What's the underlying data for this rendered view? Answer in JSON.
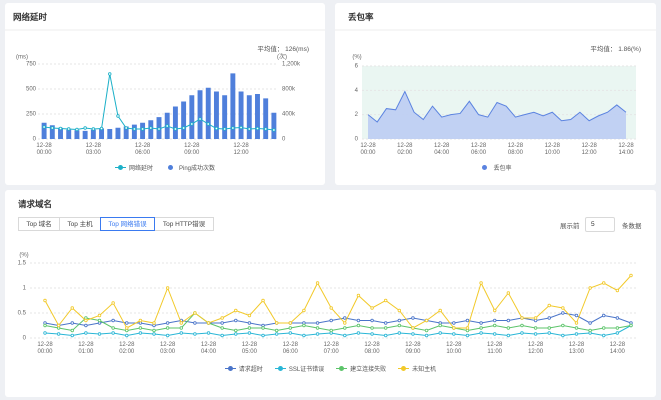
{
  "chart_data": [
    {
      "type": "combo",
      "title": "网络延时",
      "summary": "平均值： 126(ms)",
      "y_label": "(ms)",
      "y2_label": "(次)",
      "categories": [
        "12-28\n00:00",
        null,
        null,
        null,
        null,
        null,
        "12-28\n03:00",
        null,
        null,
        null,
        null,
        null,
        "12-28\n06:00",
        null,
        null,
        null,
        null,
        null,
        "12-28\n09:00",
        null,
        null,
        null,
        null,
        null,
        "12-28\n12:00",
        null,
        null,
        null,
        null
      ],
      "series": [
        {
          "name": "网络延时",
          "type": "line",
          "color": "#1cb0c8",
          "values": [
            120,
            110,
            105,
            100,
            95,
            110,
            100,
            105,
            650,
            230,
            110,
            100,
            100,
            110,
            100,
            130,
            100,
            110,
            150,
            200,
            150,
            105,
            100,
            110,
            115,
            100,
            105,
            100,
            90
          ]
        },
        {
          "name": "Ping成功次数",
          "type": "bar",
          "color": "#4f7fdb",
          "axis": "y2",
          "values": [
            260000,
            220000,
            180000,
            150000,
            140000,
            130000,
            150000,
            170000,
            160000,
            180000,
            200000,
            230000,
            260000,
            300000,
            350000,
            420000,
            520000,
            600000,
            700000,
            780000,
            820000,
            760000,
            700000,
            1050000,
            760000,
            700000,
            720000,
            650000,
            420000
          ]
        }
      ],
      "ylim": [
        0,
        750
      ],
      "yticks": [
        0,
        250,
        500,
        750
      ],
      "y2lim": [
        0,
        1200000
      ],
      "y2ticks": [
        0,
        {
          "value": 400000,
          "label": "400k"
        },
        {
          "value": 800000,
          "label": "800k"
        },
        {
          "value": 1200000,
          "label": "1,200k"
        }
      ],
      "grid": true
    },
    {
      "type": "area",
      "title": "丢包率",
      "summary": "平均值： 1.86(%)",
      "y_label": "(%)",
      "categories": [
        "12-28\n00:00",
        null,
        null,
        null,
        "12-28\n02:00",
        null,
        null,
        null,
        "12-28\n04:00",
        null,
        null,
        null,
        "12-28\n06:00",
        null,
        null,
        null,
        "12-28\n08:00",
        null,
        null,
        null,
        "12-28\n10:00",
        null,
        null,
        null,
        "12-28\n12:00",
        null,
        null,
        null,
        "12-28\n14:00"
      ],
      "series": [
        {
          "name": "丢包率",
          "color": "#5b83e0",
          "values": [
            2.0,
            1.4,
            2.5,
            2.4,
            3.9,
            2.2,
            1.6,
            2.7,
            1.8,
            2.0,
            2.1,
            3.1,
            2.0,
            1.8,
            3.0,
            2.7,
            1.8,
            2.0,
            2.2,
            1.9,
            2.2,
            1.5,
            1.6,
            2.2,
            1.5,
            1.9,
            2.2,
            2.8,
            2.2
          ]
        }
      ],
      "ylim": [
        0,
        6
      ],
      "yticks": [
        0,
        2,
        4,
        6
      ],
      "grid": true
    },
    {
      "type": "line",
      "title": "请求域名",
      "y_label": "(%)",
      "categories": [
        "12-28\n00:00",
        null,
        null,
        "12-28\n01:00",
        null,
        null,
        "12-28\n02:00",
        null,
        null,
        "12-28\n03:00",
        null,
        null,
        "12-28\n04:00",
        null,
        null,
        "12-28\n05:00",
        null,
        null,
        "12-28\n06:00",
        null,
        null,
        "12-28\n07:00",
        null,
        null,
        "12-28\n08:00",
        null,
        null,
        "12-28\n09:00",
        null,
        null,
        "12-28\n10:00",
        null,
        null,
        "12-28\n11:00",
        null,
        null,
        "12-28\n12:00",
        null,
        null,
        "12-28\n13:00",
        null,
        null,
        "12-28\n14:00",
        null
      ],
      "series": [
        {
          "name": "请求超时",
          "color": "#4a74c9",
          "values": [
            0.3,
            0.25,
            0.3,
            0.25,
            0.3,
            0.35,
            0.3,
            0.3,
            0.25,
            0.3,
            0.35,
            0.3,
            0.3,
            0.3,
            0.35,
            0.3,
            0.25,
            0.3,
            0.3,
            0.3,
            0.3,
            0.35,
            0.4,
            0.35,
            0.35,
            0.3,
            0.35,
            0.4,
            0.35,
            0.3,
            0.3,
            0.35,
            0.3,
            0.35,
            0.35,
            0.4,
            0.35,
            0.4,
            0.5,
            0.45,
            0.3,
            0.45,
            0.4,
            0.3
          ]
        },
        {
          "name": "SSL证书错误",
          "color": "#29b6d6",
          "values": [
            0.1,
            0.08,
            0.05,
            0.1,
            0.08,
            0.1,
            0.05,
            0.1,
            0.08,
            0.05,
            0.1,
            0.08,
            0.1,
            0.05,
            0.08,
            0.1,
            0.05,
            0.08,
            0.1,
            0.05,
            0.08,
            0.1,
            0.05,
            0.1,
            0.08,
            0.05,
            0.1,
            0.08,
            0.05,
            0.1,
            0.08,
            0.05,
            0.1,
            0.08,
            0.05,
            0.1,
            0.08,
            0.1,
            0.05,
            0.08,
            0.1,
            0.05,
            0.1,
            0.25
          ]
        },
        {
          "name": "建立连接失败",
          "color": "#5cc46a",
          "values": [
            0.25,
            0.2,
            0.15,
            0.4,
            0.35,
            0.2,
            0.15,
            0.2,
            0.15,
            0.2,
            0.2,
            0.5,
            0.3,
            0.2,
            0.15,
            0.2,
            0.2,
            0.15,
            0.2,
            0.25,
            0.2,
            0.15,
            0.2,
            0.25,
            0.2,
            0.2,
            0.25,
            0.2,
            0.15,
            0.25,
            0.2,
            0.15,
            0.2,
            0.25,
            0.2,
            0.25,
            0.2,
            0.2,
            0.25,
            0.2,
            0.15,
            0.2,
            0.2,
            0.25
          ]
        },
        {
          "name": "未知主机",
          "color": "#f2c929",
          "values": [
            0.75,
            0.25,
            0.6,
            0.35,
            0.45,
            0.7,
            0.2,
            0.35,
            0.3,
            1.0,
            0.3,
            0.5,
            0.3,
            0.4,
            0.55,
            0.45,
            0.75,
            0.3,
            0.3,
            0.55,
            1.1,
            0.6,
            0.3,
            0.85,
            0.6,
            0.75,
            0.55,
            0.2,
            0.35,
            0.55,
            0.2,
            0.2,
            1.1,
            0.55,
            0.9,
            0.4,
            0.4,
            0.65,
            0.6,
            0.3,
            1.0,
            1.1,
            0.95,
            1.25
          ]
        }
      ],
      "ylim": [
        0,
        1.5
      ],
      "yticks": [
        0,
        0.5,
        1,
        1.5
      ],
      "grid": true
    }
  ],
  "controls": {
    "tabs": [
      "Top 域名",
      "Top 主机",
      "Top 网络错误",
      "Top HTTP错误"
    ],
    "active_tab": 2,
    "show_prefix": "展示前",
    "show_count": "5",
    "show_suffix": "条数据"
  }
}
